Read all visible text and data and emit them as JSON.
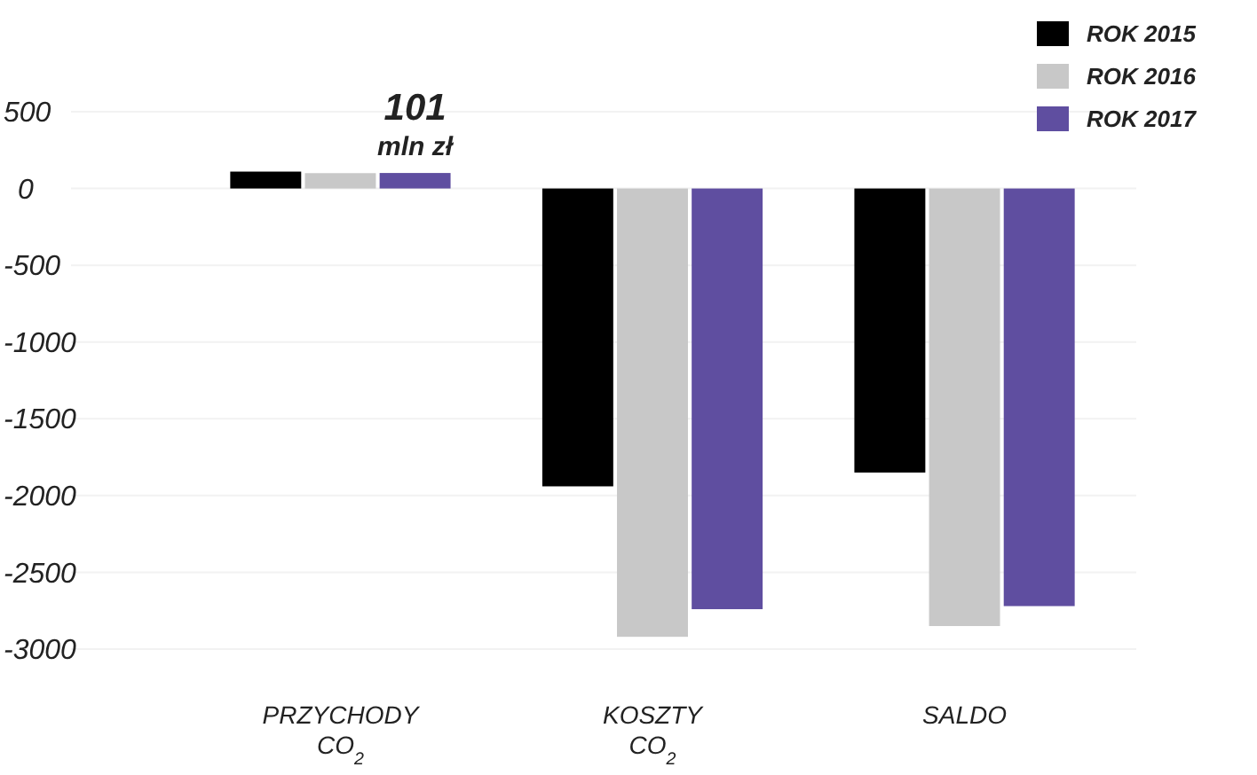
{
  "chart_data": {
    "type": "bar",
    "categories": [
      "PRZYCHODY\nCO$_{2}$",
      "KOSZTY\nCO$_{2}$",
      "SALDO"
    ],
    "series": [
      {
        "name": "ROK 2015",
        "color": "#000000",
        "values": [
          110,
          -1940,
          -1850
        ]
      },
      {
        "name": "ROK 2016",
        "color": "#c8c8c8",
        "values": [
          100,
          -2920,
          -2850
        ]
      },
      {
        "name": "ROK 2017",
        "color": "#5f4ea0",
        "values": [
          101,
          -2740,
          -2720
        ],
        "value_labels": [
          "101",
          null,
          null
        ]
      }
    ],
    "annotations": [
      "mln zł"
    ],
    "ylim": [
      -3000,
      500
    ],
    "yticks": [
      500,
      0,
      -500,
      -1000,
      -1500,
      -2000,
      -2500,
      -3000
    ],
    "grid": "y",
    "legend": "top right"
  }
}
